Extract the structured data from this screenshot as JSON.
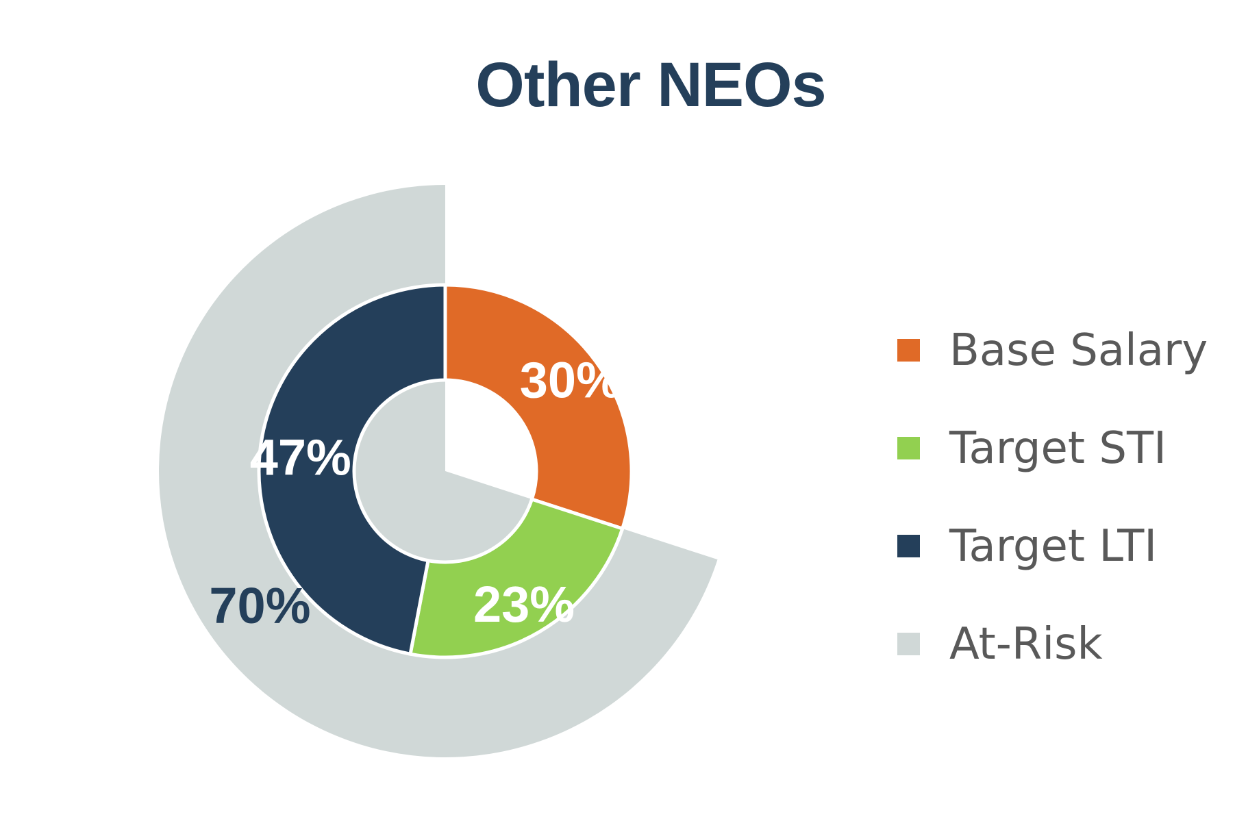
{
  "chart_data": {
    "type": "pie",
    "title": "Other NEOs",
    "title_color": "#243f5a",
    "rings": [
      {
        "name": "inner",
        "slices": [
          {
            "category": "Base Salary",
            "value": 30,
            "label": "30%",
            "color": "#e06a27",
            "label_color": "#ffffff"
          },
          {
            "category": "Target STI",
            "value": 23,
            "label": "23%",
            "color": "#92d050",
            "label_color": "#ffffff"
          },
          {
            "category": "Target LTI",
            "value": 47,
            "label": "47%",
            "color": "#243f5a",
            "label_color": "#ffffff"
          }
        ]
      },
      {
        "name": "outer",
        "slices": [
          {
            "category": "Base Salary",
            "value": 30,
            "label": "",
            "color": "#ffffff",
            "label_color": "#ffffff"
          },
          {
            "category": "At-Risk",
            "value": 70,
            "label": "70%",
            "color": "#d0d8d7",
            "label_color": "#243f5a"
          }
        ]
      }
    ],
    "legend": {
      "position": "right",
      "items": [
        {
          "label": "Base Salary",
          "color": "#e06a27"
        },
        {
          "label": "Target STI",
          "color": "#92d050"
        },
        {
          "label": "Target LTI",
          "color": "#243f5a"
        },
        {
          "label": "At-Risk",
          "color": "#d0d8d7"
        }
      ]
    }
  }
}
